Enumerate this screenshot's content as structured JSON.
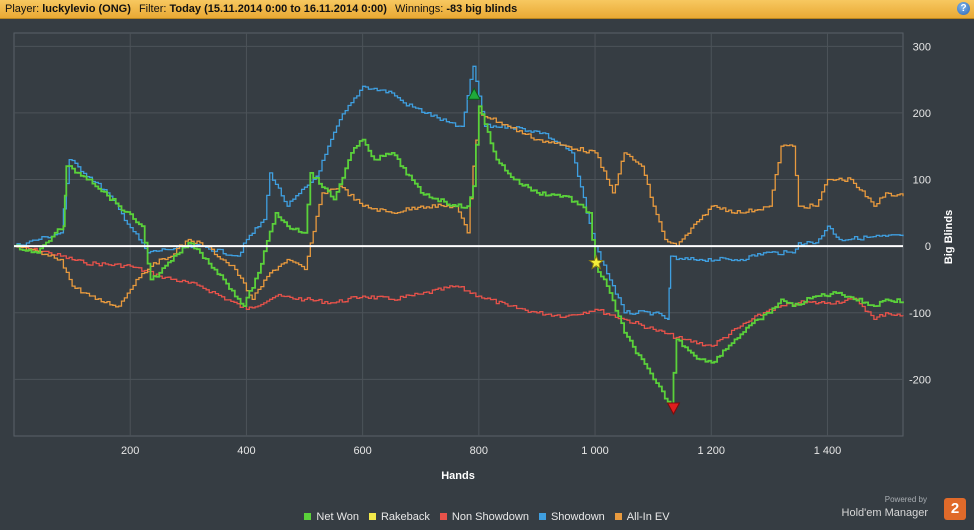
{
  "header": {
    "player_label": "Player:",
    "player_value": "luckylevio (ONG)",
    "filter_label": "Filter:",
    "filter_value": "Today (15.11.2014 0:00 to 16.11.2014 0:00)",
    "winnings_label": "Winnings:",
    "winnings_value": "-83 big blinds",
    "help_icon": "?"
  },
  "branding": {
    "powered_by": "Powered by",
    "product": "Hold'em Manager",
    "logo_text": "2"
  },
  "chart_data": {
    "type": "line",
    "xlabel": "Hands",
    "ylabel": "Big Blinds",
    "xlim": [
      0,
      1530
    ],
    "ylim": [
      -285,
      320
    ],
    "x_ticks": [
      200,
      400,
      600,
      800,
      1000,
      1200,
      1400
    ],
    "x_tick_labels": [
      "200",
      "400",
      "600",
      "800",
      "1 000",
      "1 200",
      "1 400"
    ],
    "y_ticks": [
      300,
      200,
      100,
      0,
      -100,
      -200
    ],
    "y_tick_labels": [
      "300",
      "200",
      "100",
      "0",
      "-100",
      "-200"
    ],
    "grid": true,
    "legend_position": "bottom",
    "zero_line": true,
    "series": [
      {
        "name": "Non Showdown",
        "color": "#e8524a",
        "x": [
          0,
          60,
          120,
          200,
          250,
          320,
          400,
          450,
          500,
          550,
          600,
          650,
          700,
          760,
          800,
          850,
          900,
          950,
          1000,
          1050,
          1100,
          1150,
          1200,
          1250,
          1300,
          1350,
          1400,
          1450,
          1480,
          1500,
          1530
        ],
        "y": [
          0,
          -10,
          -25,
          -30,
          -45,
          -60,
          -95,
          -75,
          -80,
          -85,
          -75,
          -80,
          -72,
          -60,
          -75,
          -90,
          -100,
          -105,
          -95,
          -110,
          -125,
          -140,
          -150,
          -120,
          -95,
          -85,
          -85,
          -80,
          -110,
          -100,
          -105
        ]
      },
      {
        "name": "Showdown",
        "color": "#3f9fe0",
        "x": [
          0,
          80,
          95,
          160,
          230,
          260,
          320,
          385,
          400,
          430,
          440,
          470,
          520,
          560,
          600,
          650,
          670,
          760,
          770,
          790,
          810,
          850,
          910,
          960,
          1000,
          1050,
          1100,
          1125,
          1130,
          1140,
          1180,
          1250,
          1290,
          1340,
          1350,
          1380,
          1400,
          1420,
          1500,
          1530
        ],
        "y": [
          0,
          20,
          130,
          80,
          -10,
          -5,
          0,
          -15,
          10,
          40,
          110,
          60,
          105,
          190,
          240,
          230,
          215,
          180,
          180,
          270,
          180,
          180,
          170,
          140,
          0,
          -100,
          -100,
          -110,
          -15,
          -20,
          -20,
          -20,
          -10,
          -10,
          5,
          5,
          30,
          10,
          15,
          15
        ]
      },
      {
        "name": "All-In EV",
        "color": "#e89a3e",
        "x": [
          0,
          80,
          100,
          140,
          180,
          210,
          240,
          260,
          300,
          330,
          380,
          410,
          440,
          470,
          500,
          530,
          560,
          600,
          650,
          700,
          760,
          780,
          790,
          800,
          850,
          900,
          950,
          1000,
          1030,
          1050,
          1080,
          1100,
          1120,
          1140,
          1180,
          1200,
          1250,
          1300,
          1320,
          1340,
          1350,
          1380,
          1400,
          1440,
          1480,
          1500,
          1530
        ],
        "y": [
          0,
          -20,
          -60,
          -80,
          -90,
          -50,
          -25,
          -20,
          10,
          0,
          -35,
          -80,
          -40,
          -20,
          -35,
          80,
          90,
          60,
          50,
          60,
          60,
          20,
          120,
          200,
          180,
          160,
          150,
          140,
          80,
          140,
          120,
          60,
          10,
          0,
          40,
          60,
          50,
          60,
          150,
          150,
          60,
          60,
          100,
          100,
          60,
          80,
          75
        ]
      },
      {
        "name": "Net Won",
        "color": "#5ad13a",
        "x": [
          0,
          40,
          70,
          85,
          90,
          130,
          180,
          220,
          235,
          250,
          300,
          320,
          360,
          395,
          420,
          450,
          470,
          500,
          510,
          550,
          580,
          600,
          620,
          650,
          700,
          760,
          780,
          790,
          800,
          830,
          860,
          900,
          950,
          990,
          1000,
          1020,
          1050,
          1100,
          1130,
          1140,
          1180,
          1200,
          1240,
          1280,
          1300,
          1320,
          1340,
          1380,
          1420,
          1480,
          1500,
          1530
        ],
        "y": [
          0,
          -10,
          20,
          30,
          120,
          100,
          60,
          30,
          -50,
          -40,
          5,
          -10,
          -50,
          -90,
          -40,
          50,
          30,
          20,
          110,
          70,
          140,
          160,
          130,
          140,
          80,
          60,
          60,
          90,
          210,
          130,
          100,
          80,
          75,
          50,
          -30,
          -60,
          -130,
          -200,
          -240,
          -140,
          -170,
          -175,
          -140,
          -110,
          -100,
          -80,
          -90,
          -75,
          -70,
          -90,
          -80,
          -83
        ]
      },
      {
        "name": "Rakeback",
        "color": "#f2e94a",
        "x": [],
        "y": []
      }
    ],
    "markers": [
      {
        "type": "max",
        "x": 792,
        "y": 228,
        "color": "#1faa3a"
      },
      {
        "type": "min",
        "x": 1135,
        "y": -243,
        "color": "#e01e1e"
      },
      {
        "type": "star",
        "x": 1002,
        "y": -25,
        "color": "#f5ef3a"
      }
    ]
  }
}
